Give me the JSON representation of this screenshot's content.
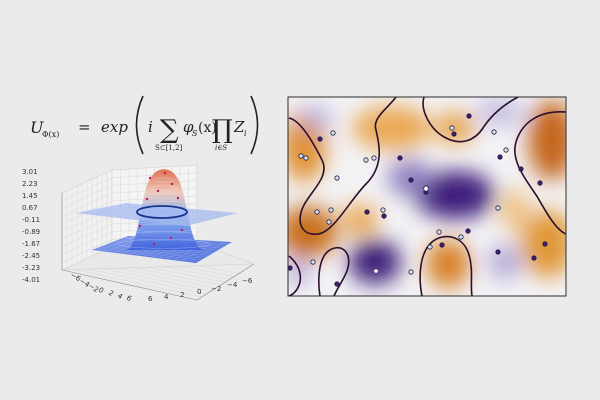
{
  "equation": {
    "lhs_symbol": "U",
    "lhs_subscript": "Φ(x)",
    "equals": "=",
    "func": "exp",
    "imag": "i",
    "sum_symbol": "∑",
    "sum_subscript": "S⊂[1,2]",
    "phi": "φ",
    "phi_subscript": "S",
    "phi_arg": "(x)",
    "prod_symbol": "∏",
    "prod_subscript": "i∈S",
    "z": "Z",
    "z_subscript": "i"
  },
  "surface_plot": {
    "z_ticks": [
      "3.01",
      "2.23",
      "1.45",
      "0.67",
      "-0.11",
      "-0.89",
      "-1.67",
      "-2.45",
      "-3.23",
      "-4.01"
    ],
    "x_ticks": [
      "6",
      "4",
      "2",
      "0",
      "−2",
      "−4",
      "−6"
    ],
    "y_ticks": [
      "−6",
      "−4",
      "−2",
      "0",
      "2",
      "4",
      "6"
    ],
    "colors": {
      "peak": "#e07850",
      "base": "#4a6ee0",
      "plane": "#9eb4ef",
      "ring": "#1a3a9a"
    }
  },
  "heatmap": {
    "colors": {
      "orange": "#d98a1e",
      "purple": "#3d1f7a",
      "white": "#f4f4f6",
      "contour": "#2a0f2e",
      "point_fill": "#cfe4f2"
    }
  }
}
